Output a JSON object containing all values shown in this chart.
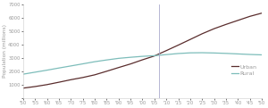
{
  "years": [
    1950,
    1955,
    1960,
    1965,
    1970,
    1975,
    1980,
    1985,
    1990,
    1995,
    2000,
    2005,
    2010,
    2015,
    2020,
    2025,
    2030,
    2035,
    2040,
    2045,
    2050
  ],
  "urban": [
    751,
    869,
    1012,
    1191,
    1378,
    1543,
    1742,
    2009,
    2285,
    2553,
    2862,
    3148,
    3548,
    3957,
    4378,
    4803,
    5180,
    5500,
    5800,
    6100,
    6340
  ],
  "rural": [
    1790,
    1940,
    2090,
    2250,
    2404,
    2560,
    2720,
    2850,
    2970,
    3050,
    3120,
    3170,
    3250,
    3330,
    3380,
    3390,
    3370,
    3340,
    3300,
    3260,
    3230
  ],
  "urban_color": "#5a2d2d",
  "rural_color": "#7dbdba",
  "vline_x": 2007,
  "vline_color": "#aaaacc",
  "ylabel": "Population (millions)",
  "ylim": [
    0,
    7000
  ],
  "xlim": [
    1950,
    2050
  ],
  "yticks": [
    0,
    1000,
    2000,
    3000,
    4000,
    5000,
    6000,
    7000
  ],
  "ytick_labels": [
    "",
    "1000",
    "2000",
    "3000",
    "4000",
    "5000",
    "6000",
    "7000"
  ],
  "xtick_years": [
    1950,
    1955,
    1960,
    1965,
    1970,
    1975,
    1980,
    1985,
    1990,
    1995,
    2000,
    2005,
    2010,
    2015,
    2020,
    2025,
    2030,
    2035,
    2040,
    2045,
    2050
  ],
  "legend_urban": "Urban",
  "legend_rural": "Rural",
  "urban_linewidth": 0.9,
  "rural_linewidth": 0.9,
  "vline_linewidth": 0.6,
  "tick_fontsize": 3.8,
  "ylabel_fontsize": 4.2,
  "legend_fontsize": 4.5,
  "spine_color": "#cccccc",
  "tick_color": "#999999",
  "label_color": "#999999"
}
